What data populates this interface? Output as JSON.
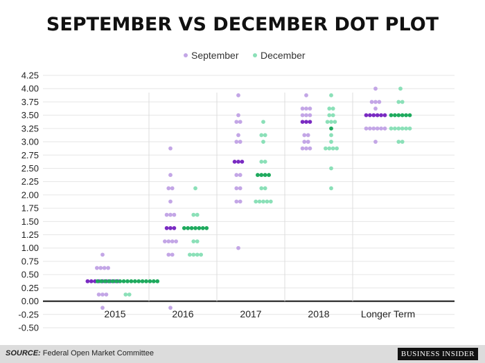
{
  "header": {
    "title": "SEPTEMBER VS DECEMBER DOT PLOT"
  },
  "footer": {
    "source_label": "SOURCE:",
    "source_text": "Federal Open Market Committee",
    "logo": "BUSINESS INSIDER"
  },
  "chart_data": {
    "type": "scatter",
    "title": "SEPTEMBER VS DECEMBER DOT PLOT",
    "xlabel": "",
    "ylabel": "",
    "ylim": [
      -0.5,
      4.25
    ],
    "yticks": [
      "4.25",
      "4.00",
      "3.75",
      "3.50",
      "3.25",
      "3.00",
      "2.75",
      "2.50",
      "2.25",
      "2.00",
      "1.75",
      "1.50",
      "1.25",
      "1.00",
      "0.75",
      "0.50",
      "0.25",
      "0.00",
      "-0.25",
      "-0.50"
    ],
    "categories": [
      "2015",
      "2016",
      "2017",
      "2018",
      "Longer Term"
    ],
    "legend_position": "top-center",
    "grid": true,
    "colors": {
      "September": "#c3a6e6",
      "September_median": "#7a2bc2",
      "December": "#8be0b8",
      "December_median": "#1faa5e"
    },
    "series": [
      {
        "name": "September",
        "dots": [
          [
            [
              0.875,
              1
            ],
            [
              0.625,
              4
            ],
            [
              0.375,
              9
            ],
            [
              0.125,
              3
            ],
            [
              -0.125,
              1
            ]
          ],
          [
            [
              2.875,
              1
            ],
            [
              2.375,
              1
            ],
            [
              2.125,
              2
            ],
            [
              1.875,
              1
            ],
            [
              1.625,
              3
            ],
            [
              1.375,
              3
            ],
            [
              1.125,
              4
            ],
            [
              0.875,
              2
            ],
            [
              -0.125,
              1
            ]
          ],
          [
            [
              3.875,
              1
            ],
            [
              3.5,
              1
            ],
            [
              3.375,
              2
            ],
            [
              3.125,
              1
            ],
            [
              3.0,
              2
            ],
            [
              2.625,
              3
            ],
            [
              2.375,
              2
            ],
            [
              2.125,
              2
            ],
            [
              1.875,
              2
            ],
            [
              1.0,
              1
            ]
          ],
          [
            [
              3.875,
              1
            ],
            [
              3.625,
              3
            ],
            [
              3.5,
              3
            ],
            [
              3.375,
              3
            ],
            [
              3.125,
              2
            ],
            [
              3.0,
              2
            ],
            [
              2.875,
              3
            ]
          ],
          [
            [
              4.0,
              1
            ],
            [
              3.75,
              3
            ],
            [
              3.625,
              1
            ],
            [
              3.5,
              6
            ],
            [
              3.25,
              6
            ],
            [
              3.0,
              1
            ]
          ]
        ],
        "medians": [
          0.375,
          1.375,
          2.625,
          3.375,
          3.5
        ]
      },
      {
        "name": "December",
        "dots": [
          [
            [
              0.375,
              17
            ],
            [
              0.125,
              2
            ]
          ],
          [
            [
              2.125,
              1
            ],
            [
              1.625,
              2
            ],
            [
              1.375,
              7
            ],
            [
              1.125,
              2
            ],
            [
              0.875,
              4
            ]
          ],
          [
            [
              3.375,
              1
            ],
            [
              3.125,
              2
            ],
            [
              3.0,
              1
            ],
            [
              2.625,
              2
            ],
            [
              2.375,
              4
            ],
            [
              2.125,
              2
            ],
            [
              1.875,
              5
            ]
          ],
          [
            [
              3.875,
              1
            ],
            [
              3.625,
              2
            ],
            [
              3.5,
              2
            ],
            [
              3.375,
              3
            ],
            [
              3.25,
              1
            ],
            [
              3.125,
              1
            ],
            [
              3.0,
              1
            ],
            [
              2.875,
              4
            ],
            [
              2.5,
              1
            ],
            [
              2.125,
              1
            ]
          ],
          [
            [
              4.0,
              1
            ],
            [
              3.75,
              2
            ],
            [
              3.5,
              6
            ],
            [
              3.25,
              6
            ],
            [
              3.0,
              2
            ]
          ]
        ],
        "medians": [
          0.375,
          1.375,
          2.375,
          3.25,
          3.5
        ]
      }
    ]
  }
}
